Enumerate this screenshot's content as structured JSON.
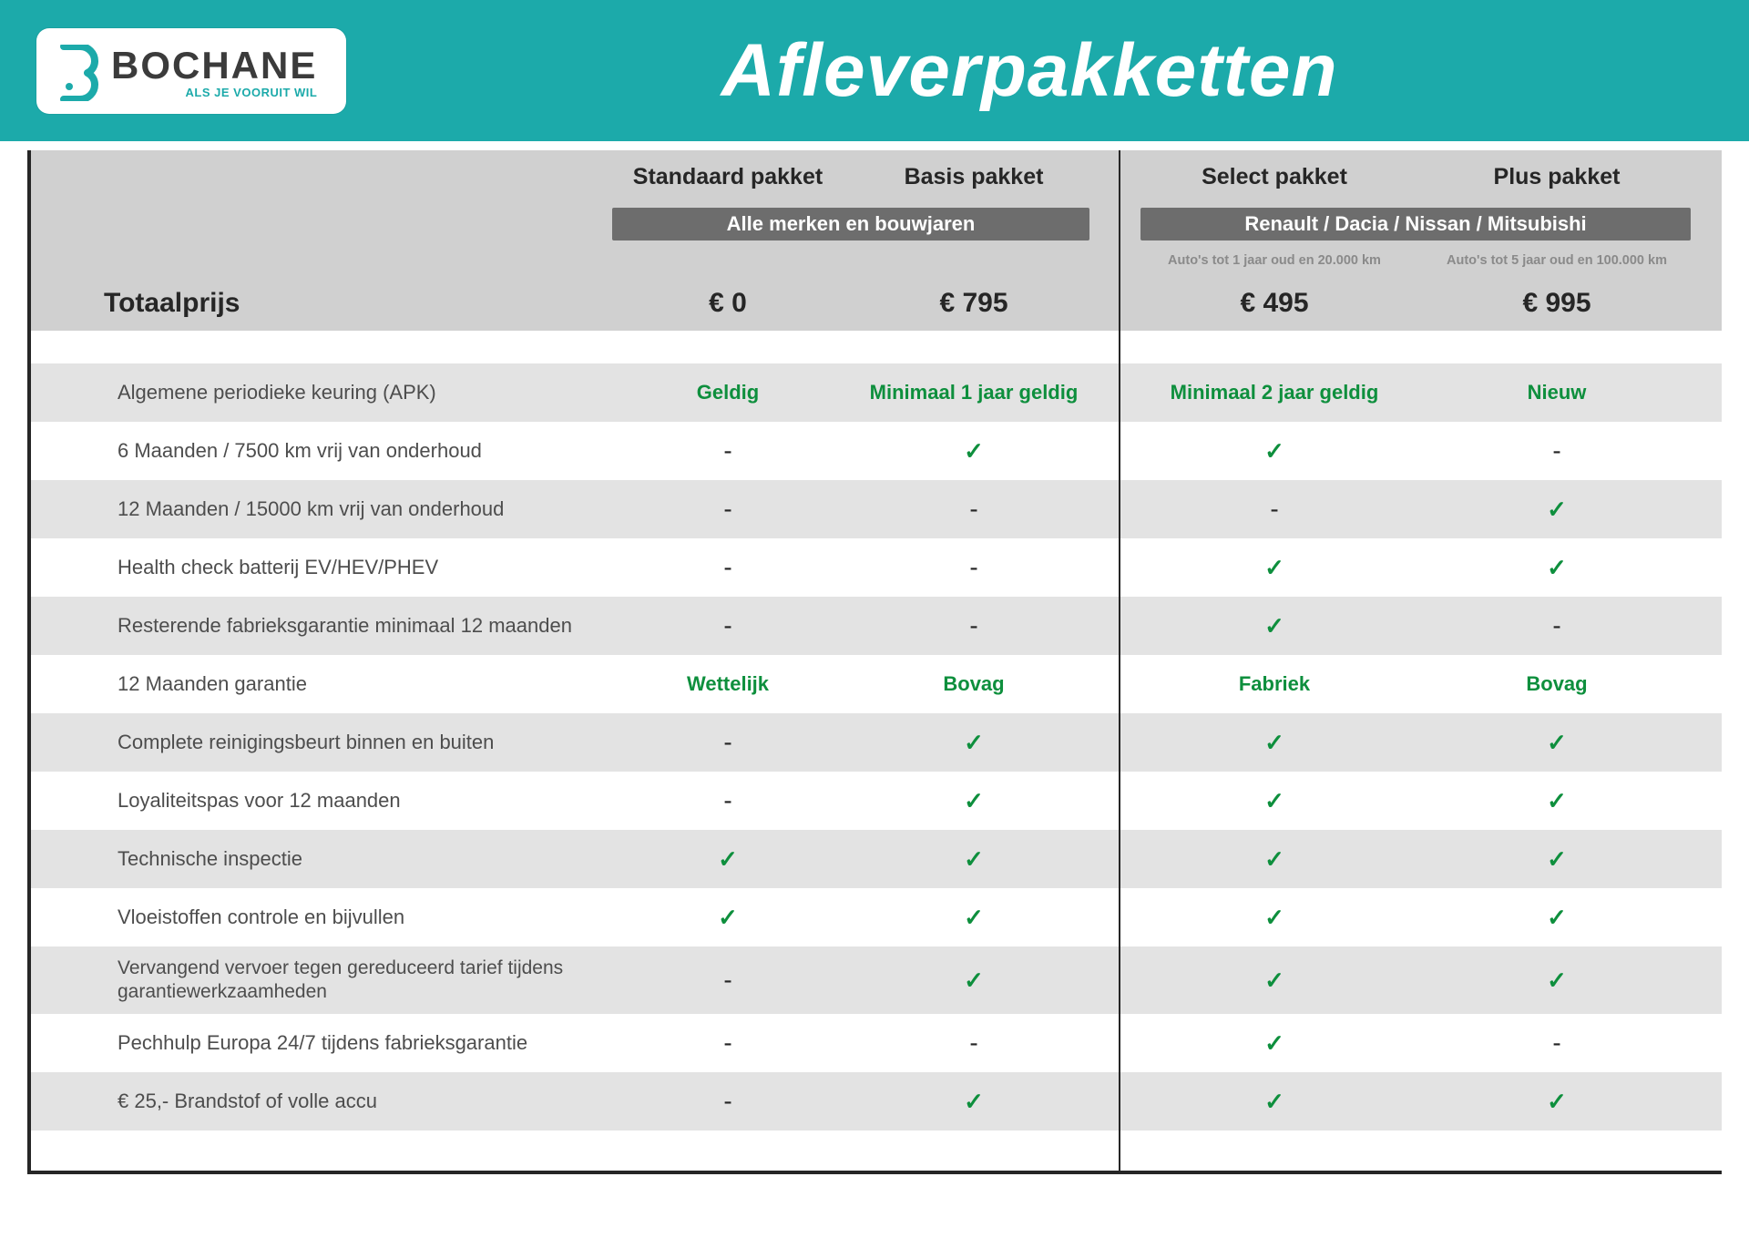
{
  "brand": {
    "name": "BOCHANE",
    "tagline": "ALS JE VOORUIT WIL",
    "accent": "#1caaaa"
  },
  "page_title": "Afleverpakketten",
  "header": {
    "totalprice_label": "Totaalprijs",
    "columns": [
      {
        "key": "standaard",
        "title": "Standaard pakket",
        "price": "€ 0",
        "subnote": ""
      },
      {
        "key": "basis",
        "title": "Basis pakket",
        "price": "€ 795",
        "subnote": ""
      },
      {
        "key": "select",
        "title": "Select pakket",
        "price": "€ 495",
        "subnote": "Auto's tot 1 jaar oud en 20.000 km"
      },
      {
        "key": "plus",
        "title": "Plus pakket",
        "price": "€ 995",
        "subnote": "Auto's tot 5 jaar oud en 100.000 km"
      }
    ],
    "group1_label": "Alle merken en bouwjaren",
    "group2_label": "Renault / Dacia / Nissan / Mitsubishi"
  },
  "features": [
    {
      "label": "Algemene periodieke keuring (APK)",
      "vals": [
        "Geldig",
        "Minimaal 1 jaar geldig",
        "Minimaal 2 jaar geldig",
        "Nieuw"
      ],
      "types": [
        "text",
        "text",
        "text",
        "text"
      ]
    },
    {
      "label": "6 Maanden / 7500 km vrij van onderhoud",
      "vals": [
        "-",
        "✓",
        "✓",
        "-"
      ],
      "types": [
        "dash",
        "check",
        "check",
        "dash"
      ]
    },
    {
      "label": "12 Maanden / 15000 km vrij van onderhoud",
      "vals": [
        "-",
        "-",
        "-",
        "✓"
      ],
      "types": [
        "dash",
        "dash",
        "dash",
        "check"
      ]
    },
    {
      "label": "Health check batterij EV/HEV/PHEV",
      "vals": [
        "-",
        "-",
        "✓",
        "✓"
      ],
      "types": [
        "dash",
        "dash",
        "check",
        "check"
      ]
    },
    {
      "label": "Resterende fabrieksgarantie minimaal 12 maanden",
      "vals": [
        "-",
        "-",
        "✓",
        "-"
      ],
      "types": [
        "dash",
        "dash",
        "check",
        "dash"
      ]
    },
    {
      "label": "12 Maanden  garantie",
      "vals": [
        "Wettelijk",
        "Bovag",
        "Fabriek",
        "Bovag"
      ],
      "types": [
        "text",
        "text",
        "text",
        "text"
      ]
    },
    {
      "label": "Complete reinigingsbeurt binnen en buiten",
      "vals": [
        "-",
        "✓",
        "✓",
        "✓"
      ],
      "types": [
        "dash",
        "check",
        "check",
        "check"
      ]
    },
    {
      "label": "Loyaliteitspas voor 12 maanden",
      "vals": [
        "-",
        "✓",
        "✓",
        "✓"
      ],
      "types": [
        "dash",
        "check",
        "check",
        "check"
      ]
    },
    {
      "label": "Technische inspectie",
      "vals": [
        "✓",
        "✓",
        "✓",
        "✓"
      ],
      "types": [
        "check",
        "check",
        "check",
        "check"
      ]
    },
    {
      "label": "Vloeistoffen controle en bijvullen",
      "vals": [
        "✓",
        "✓",
        "✓",
        "✓"
      ],
      "types": [
        "check",
        "check",
        "check",
        "check"
      ]
    },
    {
      "label": "Vervangend vervoer tegen gereduceerd tarief tijdens garantiewerkzaamheden",
      "vals": [
        "-",
        "✓",
        "✓",
        "✓"
      ],
      "types": [
        "dash",
        "check",
        "check",
        "check"
      ],
      "twoline": true
    },
    {
      "label": "Pechhulp Europa 24/7 tijdens fabrieksgarantie",
      "vals": [
        "-",
        "-",
        "✓",
        "-"
      ],
      "types": [
        "dash",
        "dash",
        "check",
        "dash"
      ]
    },
    {
      "label": "€ 25,- Brandstof of  volle accu",
      "vals": [
        "-",
        "✓",
        "✓",
        "✓"
      ],
      "types": [
        "dash",
        "check",
        "check",
        "check"
      ]
    }
  ],
  "styling": {
    "header_bg": "#1caaaa",
    "table_header_bg": "#d0d0d0",
    "stripe_bg": "#e3e3e3",
    "groupbar_bg": "#6d6d6d",
    "groupbar_fg": "#ffffff",
    "text_dark": "#262626",
    "text_feature": "#4d4d4d",
    "green": "#0e8f3d",
    "subnote": "#8a8a8a",
    "border": "#262626"
  }
}
